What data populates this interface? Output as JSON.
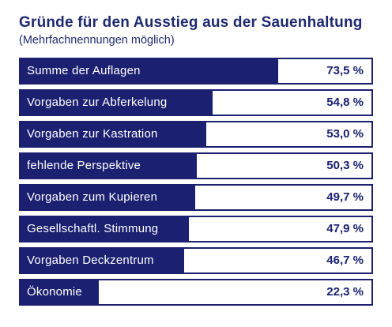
{
  "title": "Gründe für den Ausstieg aus der Sauenhaltung",
  "subtitle": "(Mehrfachnennungen möglich)",
  "colors": {
    "bar": "#1b2070",
    "text": "#1f2a6e",
    "background": "#ffffff"
  },
  "chart_data": {
    "type": "bar",
    "orientation": "horizontal",
    "title": "Gründe für den Ausstieg aus der Sauenhaltung",
    "subtitle": "(Mehrfachnennungen möglich)",
    "categories": [
      "Summe der Auflagen",
      "Vorgaben zur Abferkelung",
      "Vorgaben zur Kastration",
      "fehlende Perspektive",
      "Vorgaben zum Kupieren",
      "Gesellschaftl. Stimmung",
      "Vorgaben Deckzentrum",
      "Ökonomie"
    ],
    "values": [
      73.5,
      54.8,
      53.0,
      50.3,
      49.7,
      47.9,
      46.7,
      22.3
    ],
    "value_labels": [
      "73,5 %",
      "54,8 %",
      "53,0 %",
      "50,3 %",
      "49,7 %",
      "47,9 %",
      "46,7 %",
      "22,3 %"
    ],
    "unit": "%",
    "xlim": [
      0,
      100
    ],
    "grid": false,
    "legend": "none"
  }
}
